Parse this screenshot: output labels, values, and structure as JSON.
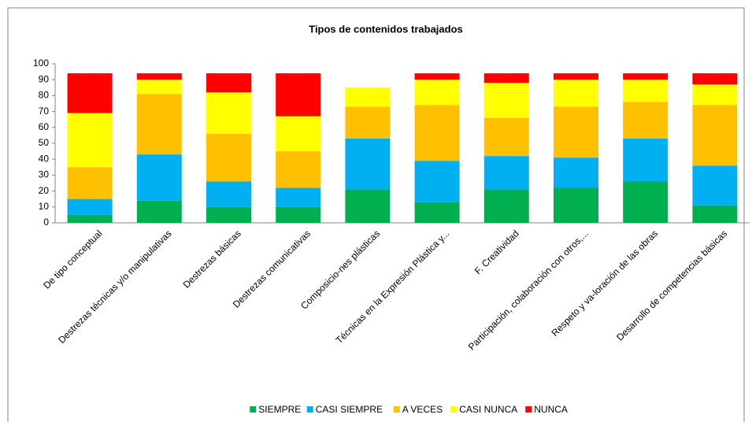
{
  "chart_data": {
    "type": "bar",
    "stacked": true,
    "title": "Tipos de contenidos trabajados",
    "categories": [
      "De tipo conceptual",
      "Destrezas técnicas y/o manipulativas",
      "Destrezas básicas",
      "Destrezas comunicativas",
      "Composicio-nes plásticas",
      "Técnicas en la Expresión Plástica y...",
      "F. Creatividad",
      "Participación, colaboración con otros,...",
      "Respeto y va-loración de las obras",
      "Desarrollo de competencias básicas"
    ],
    "series": [
      {
        "name": "SIEMPRE",
        "color": "#00b050",
        "values": [
          5,
          14,
          10,
          10,
          21,
          13,
          21,
          22,
          26,
          11
        ]
      },
      {
        "name": "CASI SIEMPRE",
        "color": "#00b0f0",
        "values": [
          10,
          29,
          16,
          12,
          32,
          26,
          21,
          19,
          27,
          25
        ]
      },
      {
        "name": "A VECES",
        "color": "#ffc000",
        "values": [
          20,
          38,
          30,
          23,
          20,
          35,
          24,
          32,
          23,
          38
        ]
      },
      {
        "name": "CASI NUNCA",
        "color": "#ffff00",
        "values": [
          34,
          9,
          26,
          22,
          12,
          16,
          22,
          17,
          14,
          13
        ]
      },
      {
        "name": "NUNCA",
        "color": "#ff0000",
        "values": [
          25,
          4,
          12,
          27,
          0,
          4,
          6,
          4,
          4,
          7
        ]
      }
    ],
    "ylim": [
      0,
      100
    ],
    "yticks": [
      0,
      10,
      20,
      30,
      40,
      50,
      60,
      70,
      80,
      90,
      100
    ],
    "legend": "bottom"
  }
}
